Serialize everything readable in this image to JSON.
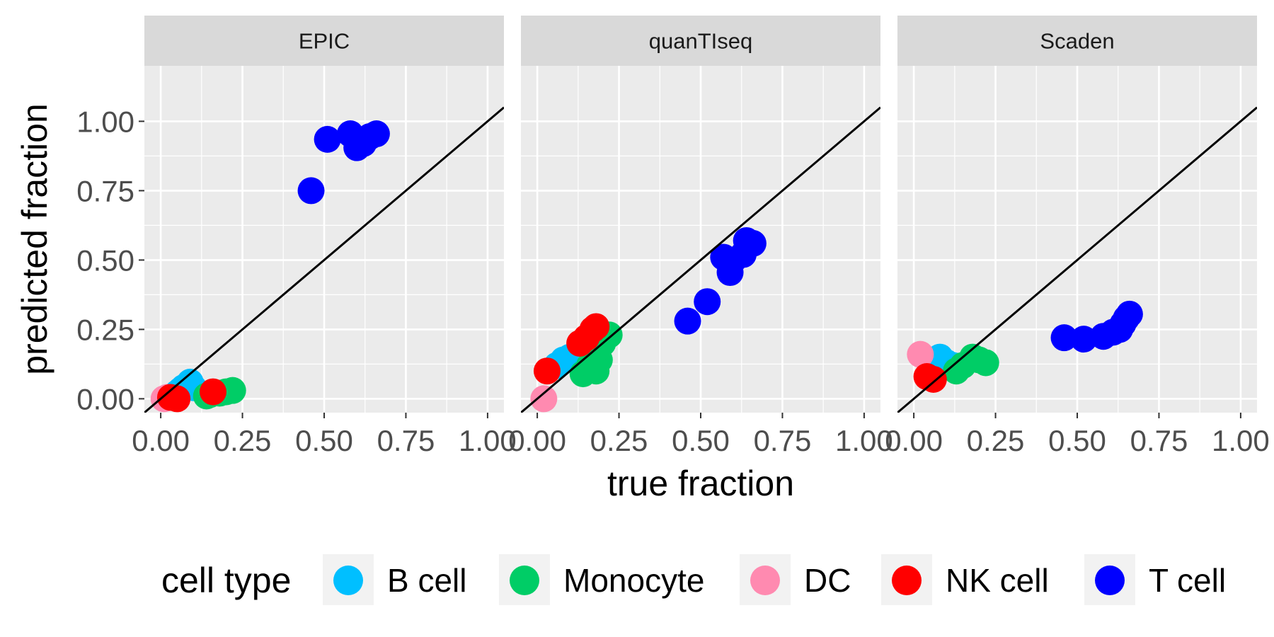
{
  "chart_data": {
    "type": "scatter",
    "x_label": "true fraction",
    "y_label": "predicted fraction",
    "xlim": [
      -0.05,
      1.05
    ],
    "ylim": [
      -0.05,
      1.2
    ],
    "x_ticks": [
      "0.00",
      "0.25",
      "0.50",
      "0.75",
      "1.00"
    ],
    "y_ticks": [
      "0.00",
      "0.25",
      "0.50",
      "0.75",
      "1.00"
    ],
    "grid": true,
    "reference_line": "y = x",
    "legend": {
      "title": "cell type",
      "position": "bottom",
      "entries": [
        {
          "label": "B cell",
          "color": "#00BFFF"
        },
        {
          "label": "Monocyte",
          "color": "#00CD66"
        },
        {
          "label": "DC",
          "color": "#FF8AB0"
        },
        {
          "label": "NK cell",
          "color": "#FF0000"
        },
        {
          "label": "T cell",
          "color": "#0000FF"
        }
      ]
    },
    "facets": [
      {
        "label": "EPIC",
        "series": [
          {
            "name": "B cell",
            "points": [
              [
                0.05,
                0.02
              ],
              [
                0.07,
                0.04
              ],
              [
                0.09,
                0.06
              ],
              [
                0.1,
                0.04
              ],
              [
                0.06,
                0.03
              ]
            ]
          },
          {
            "name": "Monocyte",
            "points": [
              [
                0.14,
                0.01
              ],
              [
                0.16,
                0.02
              ],
              [
                0.18,
                0.02
              ],
              [
                0.2,
                0.025
              ],
              [
                0.22,
                0.03
              ],
              [
                0.15,
                0.015
              ]
            ]
          },
          {
            "name": "DC",
            "points": [
              [
                0.01,
                0.0
              ],
              [
                0.02,
                0.005
              ]
            ]
          },
          {
            "name": "NK cell",
            "points": [
              [
                0.03,
                0.005
              ],
              [
                0.05,
                0.0
              ],
              [
                0.16,
                0.025
              ]
            ]
          },
          {
            "name": "T cell",
            "points": [
              [
                0.46,
                0.75
              ],
              [
                0.51,
                0.935
              ],
              [
                0.58,
                0.955
              ],
              [
                0.6,
                0.905
              ],
              [
                0.62,
                0.92
              ],
              [
                0.64,
                0.945
              ],
              [
                0.66,
                0.955
              ]
            ]
          }
        ]
      },
      {
        "label": "quanTIseq",
        "series": [
          {
            "name": "B cell",
            "points": [
              [
                0.06,
                0.12
              ],
              [
                0.08,
                0.14
              ],
              [
                0.1,
                0.15
              ]
            ]
          },
          {
            "name": "Monocyte",
            "points": [
              [
                0.14,
                0.09
              ],
              [
                0.16,
                0.12
              ],
              [
                0.18,
                0.1
              ],
              [
                0.19,
                0.14
              ],
              [
                0.22,
                0.23
              ],
              [
                0.17,
                0.16
              ],
              [
                0.2,
                0.2
              ]
            ]
          },
          {
            "name": "DC",
            "points": [
              [
                0.02,
                0.0
              ]
            ]
          },
          {
            "name": "NK cell",
            "points": [
              [
                0.03,
                0.1
              ],
              [
                0.13,
                0.2
              ],
              [
                0.15,
                0.22
              ],
              [
                0.17,
                0.25
              ],
              [
                0.18,
                0.26
              ]
            ]
          },
          {
            "name": "T cell",
            "points": [
              [
                0.46,
                0.28
              ],
              [
                0.52,
                0.35
              ],
              [
                0.57,
                0.51
              ],
              [
                0.59,
                0.455
              ],
              [
                0.6,
                0.5
              ],
              [
                0.63,
                0.52
              ],
              [
                0.64,
                0.57
              ],
              [
                0.66,
                0.56
              ]
            ]
          }
        ]
      },
      {
        "label": "Scaden",
        "series": [
          {
            "name": "B cell",
            "points": [
              [
                0.08,
                0.15
              ],
              [
                0.1,
                0.13
              ],
              [
                0.12,
                0.12
              ]
            ]
          },
          {
            "name": "Monocyte",
            "points": [
              [
                0.13,
                0.1
              ],
              [
                0.15,
                0.12
              ],
              [
                0.18,
                0.15
              ],
              [
                0.2,
                0.14
              ],
              [
                0.22,
                0.13
              ]
            ]
          },
          {
            "name": "DC",
            "points": [
              [
                0.02,
                0.16
              ]
            ]
          },
          {
            "name": "NK cell",
            "points": [
              [
                0.04,
                0.08
              ],
              [
                0.06,
                0.07
              ]
            ]
          },
          {
            "name": "T cell",
            "points": [
              [
                0.46,
                0.22
              ],
              [
                0.52,
                0.215
              ],
              [
                0.58,
                0.225
              ],
              [
                0.61,
                0.24
              ],
              [
                0.63,
                0.25
              ],
              [
                0.64,
                0.27
              ],
              [
                0.65,
                0.29
              ],
              [
                0.66,
                0.305
              ]
            ]
          }
        ]
      }
    ]
  }
}
